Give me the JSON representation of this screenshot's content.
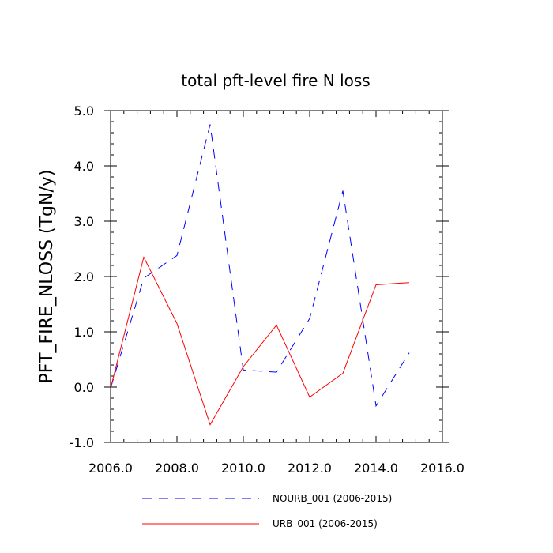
{
  "chart_data": {
    "type": "line",
    "title": "total pft-level fire N loss",
    "xlabel": "",
    "ylabel": "PFT_FIRE_NLOSS  (TgN/y)",
    "xlim": [
      2006.0,
      2016.0
    ],
    "ylim": [
      -1.0,
      5.0
    ],
    "xticks": [
      2006.0,
      2008.0,
      2010.0,
      2012.0,
      2014.0,
      2016.0
    ],
    "xtick_labels": [
      "2006.0",
      "2008.0",
      "2010.0",
      "2012.0",
      "2014.0",
      "2016.0"
    ],
    "yticks": [
      -1.0,
      0.0,
      1.0,
      2.0,
      3.0,
      4.0,
      5.0
    ],
    "ytick_labels": [
      "-1.0",
      "0.0",
      "1.0",
      "2.0",
      "3.0",
      "4.0",
      "5.0"
    ],
    "grid": false,
    "legend_position": "bottom",
    "x": [
      2006,
      2007,
      2008,
      2009,
      2010,
      2011,
      2012,
      2013,
      2014,
      2015
    ],
    "series": [
      {
        "name": "NOURB_001 (2006-2015)",
        "color": "#0000ff",
        "style": "dashed",
        "values": [
          -0.02,
          1.97,
          2.38,
          4.75,
          0.31,
          0.27,
          1.24,
          3.55,
          -0.34,
          0.62
        ]
      },
      {
        "name": "URB_001 (2006-2015)",
        "color": "#ff0000",
        "style": "solid",
        "values": [
          -0.02,
          2.35,
          1.15,
          -0.68,
          0.37,
          1.12,
          -0.18,
          0.25,
          1.85,
          1.89
        ]
      }
    ]
  }
}
